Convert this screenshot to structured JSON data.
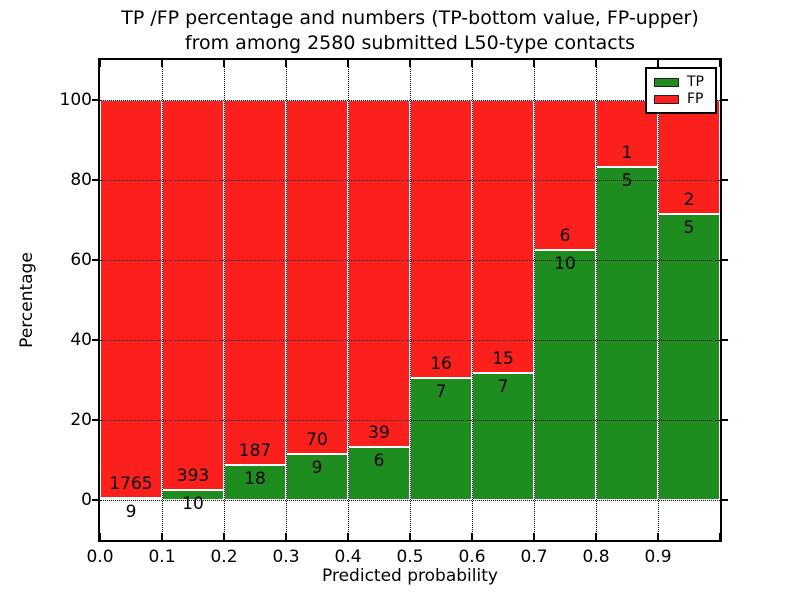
{
  "chart_data": {
    "type": "bar",
    "stacked": true,
    "normalized_to_percent": true,
    "title": "TP /FP percentage and numbers (TP-bottom value, FP-upper) from among 2580 submitted L50-type contacts",
    "title_line1": "TP /FP percentage and numbers (TP-bottom value, FP-upper)",
    "title_line2": "from among 2580 submitted L50-type contacts",
    "xlabel": "Predicted probability",
    "ylabel": "Percentage",
    "total_submitted": 2580,
    "categories": [
      "0.0",
      "0.1",
      "0.2",
      "0.3",
      "0.4",
      "0.5",
      "0.6",
      "0.7",
      "0.8",
      "0.9"
    ],
    "bin_width": 0.1,
    "series": [
      {
        "name": "TP",
        "color": "#1e8c1e",
        "values": [
          9,
          10,
          18,
          9,
          6,
          7,
          7,
          10,
          5,
          5
        ]
      },
      {
        "name": "FP",
        "color": "#fc201c",
        "values": [
          1765,
          393,
          187,
          70,
          39,
          16,
          15,
          6,
          1,
          2
        ]
      }
    ],
    "tp_percent_of_bin": [
      0.51,
      2.48,
      8.78,
      11.39,
      13.33,
      30.43,
      31.82,
      62.5,
      83.33,
      71.43
    ],
    "xlim": [
      0.0,
      1.0
    ],
    "ylim": [
      -10,
      110
    ],
    "xticks": [
      "0.0",
      "0.1",
      "0.2",
      "0.3",
      "0.4",
      "0.5",
      "0.6",
      "0.7",
      "0.8",
      "0.9"
    ],
    "yticks": [
      0,
      20,
      40,
      60,
      80,
      100
    ],
    "grid": "dotted",
    "legend": {
      "position": "upper right",
      "entries": [
        {
          "label": "TP",
          "color": "#1e8c1e"
        },
        {
          "label": "FP",
          "color": "#fc201c"
        }
      ]
    }
  }
}
